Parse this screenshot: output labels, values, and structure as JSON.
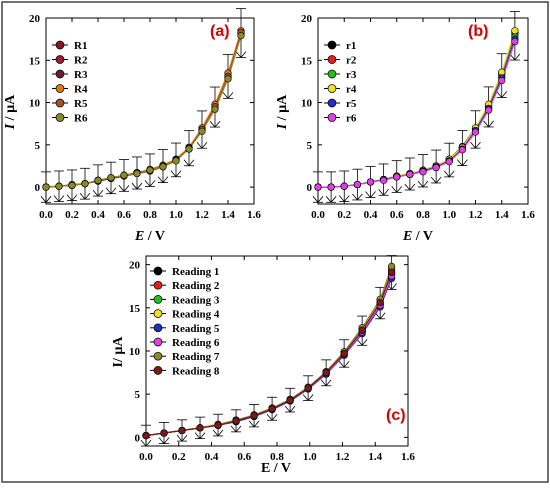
{
  "colors": {
    "frame": "#444444",
    "panel_label": "#d40000"
  },
  "chart_data": [
    {
      "type": "line",
      "panel_label": "(a)",
      "xlabel_parts": [
        "E",
        " / V"
      ],
      "ylabel_parts": [
        "I",
        " / µA"
      ],
      "xlim": [
        0,
        1.6
      ],
      "ylim": [
        -2,
        20
      ],
      "x_ticks": [
        "0.0",
        "0.2",
        "0.4",
        "0.6",
        "0.8",
        "1.0",
        "1.2",
        "1.4",
        "1.6"
      ],
      "y_ticks": [
        "0",
        "5",
        "10",
        "15",
        "20"
      ],
      "legend_position": "top-left",
      "x": [
        0.0,
        0.1,
        0.2,
        0.3,
        0.4,
        0.5,
        0.6,
        0.7,
        0.8,
        0.9,
        1.0,
        1.1,
        1.2,
        1.3,
        1.4,
        1.5
      ],
      "series": [
        {
          "name": "R1",
          "color": "#8b1a1a",
          "values": [
            0.0,
            0.1,
            0.2,
            0.4,
            0.8,
            1.1,
            1.4,
            1.7,
            2.0,
            2.5,
            3.2,
            4.6,
            6.8,
            9.4,
            13.0,
            18.2
          ]
        },
        {
          "name": "R2",
          "color": "#9e1b32",
          "values": [
            0.0,
            0.1,
            0.3,
            0.4,
            0.8,
            1.1,
            1.4,
            1.7,
            2.0,
            2.5,
            3.3,
            4.7,
            6.9,
            9.6,
            13.2,
            18.4
          ]
        },
        {
          "name": "R3",
          "color": "#6b1f2e",
          "values": [
            0.0,
            0.1,
            0.2,
            0.4,
            0.7,
            1.0,
            1.3,
            1.6,
            1.9,
            2.4,
            3.2,
            4.5,
            6.7,
            9.3,
            12.9,
            18.0
          ]
        },
        {
          "name": "R4",
          "color": "#e07a10",
          "values": [
            0.0,
            0.1,
            0.2,
            0.4,
            0.8,
            1.1,
            1.4,
            1.7,
            2.1,
            2.6,
            3.3,
            4.7,
            7.0,
            9.8,
            13.5,
            18.5
          ]
        },
        {
          "name": "R5",
          "color": "#a0522d",
          "values": [
            0.0,
            0.1,
            0.2,
            0.4,
            0.8,
            1.1,
            1.4,
            1.7,
            2.0,
            2.5,
            3.2,
            4.6,
            6.8,
            9.5,
            13.1,
            18.3
          ]
        },
        {
          "name": "R6",
          "color": "#8a8a2a",
          "values": [
            0.0,
            0.1,
            0.2,
            0.4,
            0.8,
            1.1,
            1.4,
            1.6,
            2.0,
            2.4,
            3.1,
            4.5,
            6.6,
            9.2,
            12.8,
            17.9
          ]
        }
      ]
    },
    {
      "type": "line",
      "panel_label": "(b)",
      "xlabel_parts": [
        "E",
        " / V"
      ],
      "ylabel_parts": [
        "I",
        " / µA"
      ],
      "xlim": [
        0,
        1.6
      ],
      "ylim": [
        -2,
        20
      ],
      "x_ticks": [
        "0.0",
        "0.2",
        "0.4",
        "0.6",
        "0.8",
        "1.0",
        "1.2",
        "1.4",
        "1.6"
      ],
      "y_ticks": [
        "0",
        "5",
        "10",
        "15",
        "20"
      ],
      "legend_position": "top-left",
      "x": [
        0.0,
        0.1,
        0.2,
        0.3,
        0.4,
        0.5,
        0.6,
        0.7,
        0.8,
        0.9,
        1.0,
        1.1,
        1.2,
        1.3,
        1.4,
        1.5
      ],
      "series": [
        {
          "name": "r1",
          "color": "#000000",
          "values": [
            0.0,
            0.0,
            0.1,
            0.3,
            0.6,
            0.9,
            1.3,
            1.6,
            2.0,
            2.5,
            3.3,
            4.8,
            7.0,
            9.7,
            13.5,
            18.3
          ]
        },
        {
          "name": "r2",
          "color": "#e02020",
          "values": [
            0.0,
            0.0,
            0.1,
            0.3,
            0.6,
            0.9,
            1.3,
            1.6,
            2.0,
            2.5,
            3.3,
            4.7,
            6.9,
            9.6,
            13.4,
            18.1
          ]
        },
        {
          "name": "r3",
          "color": "#20c020",
          "values": [
            0.0,
            0.0,
            0.1,
            0.3,
            0.6,
            0.9,
            1.2,
            1.5,
            1.9,
            2.4,
            3.2,
            4.6,
            6.8,
            9.4,
            13.1,
            17.8
          ]
        },
        {
          "name": "r4",
          "color": "#f0e020",
          "values": [
            0.0,
            0.0,
            0.1,
            0.3,
            0.6,
            0.9,
            1.3,
            1.6,
            2.0,
            2.5,
            3.3,
            4.7,
            7.0,
            9.8,
            13.6,
            18.5
          ]
        },
        {
          "name": "r5",
          "color": "#2030c0",
          "values": [
            0.0,
            0.0,
            0.1,
            0.3,
            0.6,
            0.9,
            1.2,
            1.5,
            1.9,
            2.4,
            3.1,
            4.5,
            6.7,
            9.3,
            12.9,
            17.5
          ]
        },
        {
          "name": "r6",
          "color": "#e040e0",
          "values": [
            0.0,
            0.0,
            0.1,
            0.3,
            0.6,
            0.8,
            1.2,
            1.5,
            1.8,
            2.3,
            3.0,
            4.4,
            6.5,
            9.1,
            12.6,
            17.2
          ]
        }
      ]
    },
    {
      "type": "line",
      "panel_label": "(c)",
      "xlabel_parts": [
        "",
        "E / V"
      ],
      "ylabel_parts": [
        "",
        "I/ µA"
      ],
      "xlim": [
        0,
        1.6
      ],
      "ylim": [
        -1,
        21
      ],
      "x_ticks": [
        "0.0",
        "0.2",
        "0.4",
        "0.6",
        "0.8",
        "1.0",
        "1.2",
        "1.4",
        "1.6"
      ],
      "y_ticks": [
        "0",
        "5",
        "10",
        "15",
        "20"
      ],
      "legend_position": "top-left",
      "x": [
        0.0,
        0.11,
        0.22,
        0.33,
        0.44,
        0.55,
        0.66,
        0.77,
        0.88,
        0.99,
        1.1,
        1.21,
        1.32,
        1.43,
        1.5
      ],
      "series": [
        {
          "name": "Reading 1",
          "color": "#000000",
          "values": [
            0.2,
            0.5,
            0.8,
            1.1,
            1.4,
            1.9,
            2.5,
            3.3,
            4.3,
            5.7,
            7.5,
            9.8,
            12.4,
            15.6,
            19.3
          ]
        },
        {
          "name": "Reading 2",
          "color": "#e02020",
          "values": [
            0.2,
            0.5,
            0.8,
            1.1,
            1.4,
            1.9,
            2.5,
            3.3,
            4.3,
            5.7,
            7.5,
            9.7,
            12.3,
            15.5,
            19.0
          ]
        },
        {
          "name": "Reading 3",
          "color": "#20c020",
          "values": [
            0.2,
            0.5,
            0.8,
            1.1,
            1.4,
            1.9,
            2.5,
            3.3,
            4.3,
            5.6,
            7.4,
            9.6,
            12.2,
            15.4,
            18.8
          ]
        },
        {
          "name": "Reading 4",
          "color": "#f0e020",
          "values": [
            0.2,
            0.5,
            0.8,
            1.1,
            1.5,
            2.0,
            2.6,
            3.4,
            4.4,
            5.8,
            7.6,
            9.9,
            12.6,
            15.9,
            19.6
          ]
        },
        {
          "name": "Reading 5",
          "color": "#2030c0",
          "values": [
            0.2,
            0.5,
            0.8,
            1.1,
            1.4,
            1.8,
            2.4,
            3.2,
            4.2,
            5.6,
            7.3,
            9.5,
            12.0,
            15.1,
            18.4
          ]
        },
        {
          "name": "Reading 6",
          "color": "#e040e0",
          "values": [
            0.2,
            0.5,
            0.8,
            1.1,
            1.4,
            1.9,
            2.5,
            3.3,
            4.3,
            5.7,
            7.4,
            9.6,
            12.2,
            15.3,
            18.7
          ]
        },
        {
          "name": "Reading 7",
          "color": "#8a8a2a",
          "values": [
            0.2,
            0.5,
            0.8,
            1.1,
            1.5,
            2.0,
            2.6,
            3.4,
            4.4,
            5.8,
            7.6,
            9.9,
            12.7,
            16.0,
            19.8
          ]
        },
        {
          "name": "Reading 8",
          "color": "#7a1a1a",
          "values": [
            0.2,
            0.5,
            0.8,
            1.1,
            1.4,
            1.9,
            2.5,
            3.3,
            4.3,
            5.7,
            7.5,
            9.7,
            12.4,
            15.6,
            19.1
          ]
        }
      ]
    }
  ]
}
